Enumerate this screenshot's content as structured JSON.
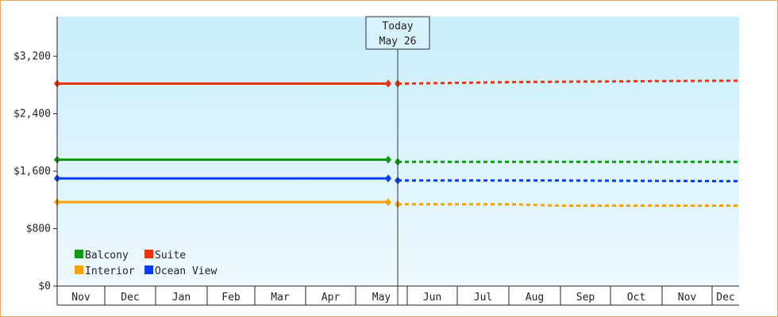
{
  "chart_data": {
    "type": "line",
    "title": "",
    "xlabel": "",
    "ylabel": "",
    "ylim": [
      0,
      3200
    ],
    "y_ticks": [
      "$0",
      "$800",
      "$1,600",
      "$2,400",
      "$3,200"
    ],
    "y_tick_values": [
      0,
      800,
      1600,
      2400,
      3200
    ],
    "x_axis_months": [
      "Nov",
      "Dec",
      "Jan",
      "Feb",
      "Mar",
      "Apr",
      "May",
      "Jun",
      "Jul",
      "Aug",
      "Sep",
      "Oct",
      "Nov",
      "Dec"
    ],
    "today_marker": {
      "line1": "Today",
      "line2": "May 26"
    },
    "legend_position": "bottom-left",
    "grid": false,
    "series": [
      {
        "name": "Balcony",
        "color": "#119911",
        "history": [
          {
            "x": "Nov",
            "y": 1760
          },
          {
            "x": "May 24",
            "y": 1760
          }
        ],
        "forecast": [
          {
            "x": "May 26",
            "y": 1730
          },
          {
            "x": "Dec",
            "y": 1730
          }
        ]
      },
      {
        "name": "Suite",
        "color": "#ee3311",
        "history": [
          {
            "x": "Nov",
            "y": 2820
          },
          {
            "x": "May 24",
            "y": 2820
          }
        ],
        "forecast": [
          {
            "x": "May 26",
            "y": 2820
          },
          {
            "x": "Jun",
            "y": 2820
          },
          {
            "x": "Aug",
            "y": 2840
          },
          {
            "x": "Oct",
            "y": 2850
          },
          {
            "x": "Dec",
            "y": 2860
          }
        ]
      },
      {
        "name": "Interior",
        "color": "#f5a300",
        "history": [
          {
            "x": "Nov",
            "y": 1170
          },
          {
            "x": "May 24",
            "y": 1170
          }
        ],
        "forecast": [
          {
            "x": "May 26",
            "y": 1140
          },
          {
            "x": "Aug",
            "y": 1140
          },
          {
            "x": "Sep",
            "y": 1120
          },
          {
            "x": "Dec",
            "y": 1120
          }
        ]
      },
      {
        "name": "Ocean View",
        "color": "#0a3cf0",
        "history": [
          {
            "x": "Nov",
            "y": 1500
          },
          {
            "x": "May 24",
            "y": 1500
          }
        ],
        "forecast": [
          {
            "x": "May 26",
            "y": 1470
          },
          {
            "x": "Sep",
            "y": 1470
          },
          {
            "x": "Dec",
            "y": 1460
          }
        ]
      }
    ]
  }
}
